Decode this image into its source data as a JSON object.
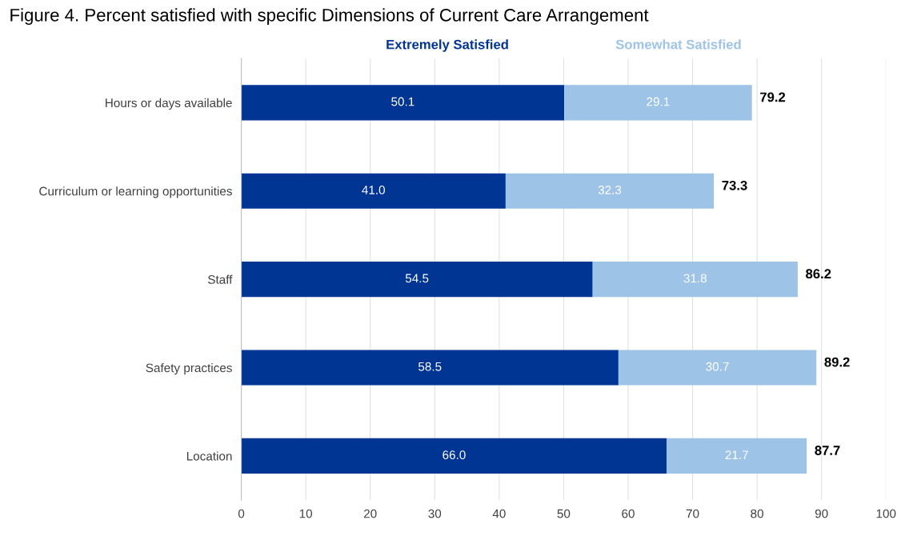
{
  "chart_data": {
    "type": "bar",
    "orientation": "horizontal",
    "stacked": true,
    "title": "Figure 4. Percent satisfied with specific Dimensions of Current Care Arrangement",
    "categories": [
      "Hours or days available",
      "Curriculum or learning opportunities",
      "Staff",
      "Safety practices",
      "Location"
    ],
    "series": [
      {
        "name": "Extremely Satisfied",
        "color": "#003594",
        "values": [
          50.1,
          41.0,
          54.5,
          58.5,
          66.0
        ],
        "value_labels": [
          "50.1",
          "41.0",
          "54.5",
          "58.5",
          "66.0"
        ]
      },
      {
        "name": "Somewhat Satisfied",
        "color": "#9dc3e6",
        "values": [
          29.1,
          32.3,
          31.8,
          30.7,
          21.7
        ],
        "value_labels": [
          "29.1",
          "32.3",
          "31.8",
          "30.7",
          "21.7"
        ]
      }
    ],
    "totals": [
      "79.2",
      "73.3",
      "86.2",
      "89.2",
      "87.7"
    ],
    "xlim": [
      0,
      100
    ],
    "xticks": [
      0,
      10,
      20,
      30,
      40,
      50,
      60,
      70,
      80,
      90,
      100
    ],
    "grid": "x",
    "legend": "top"
  }
}
